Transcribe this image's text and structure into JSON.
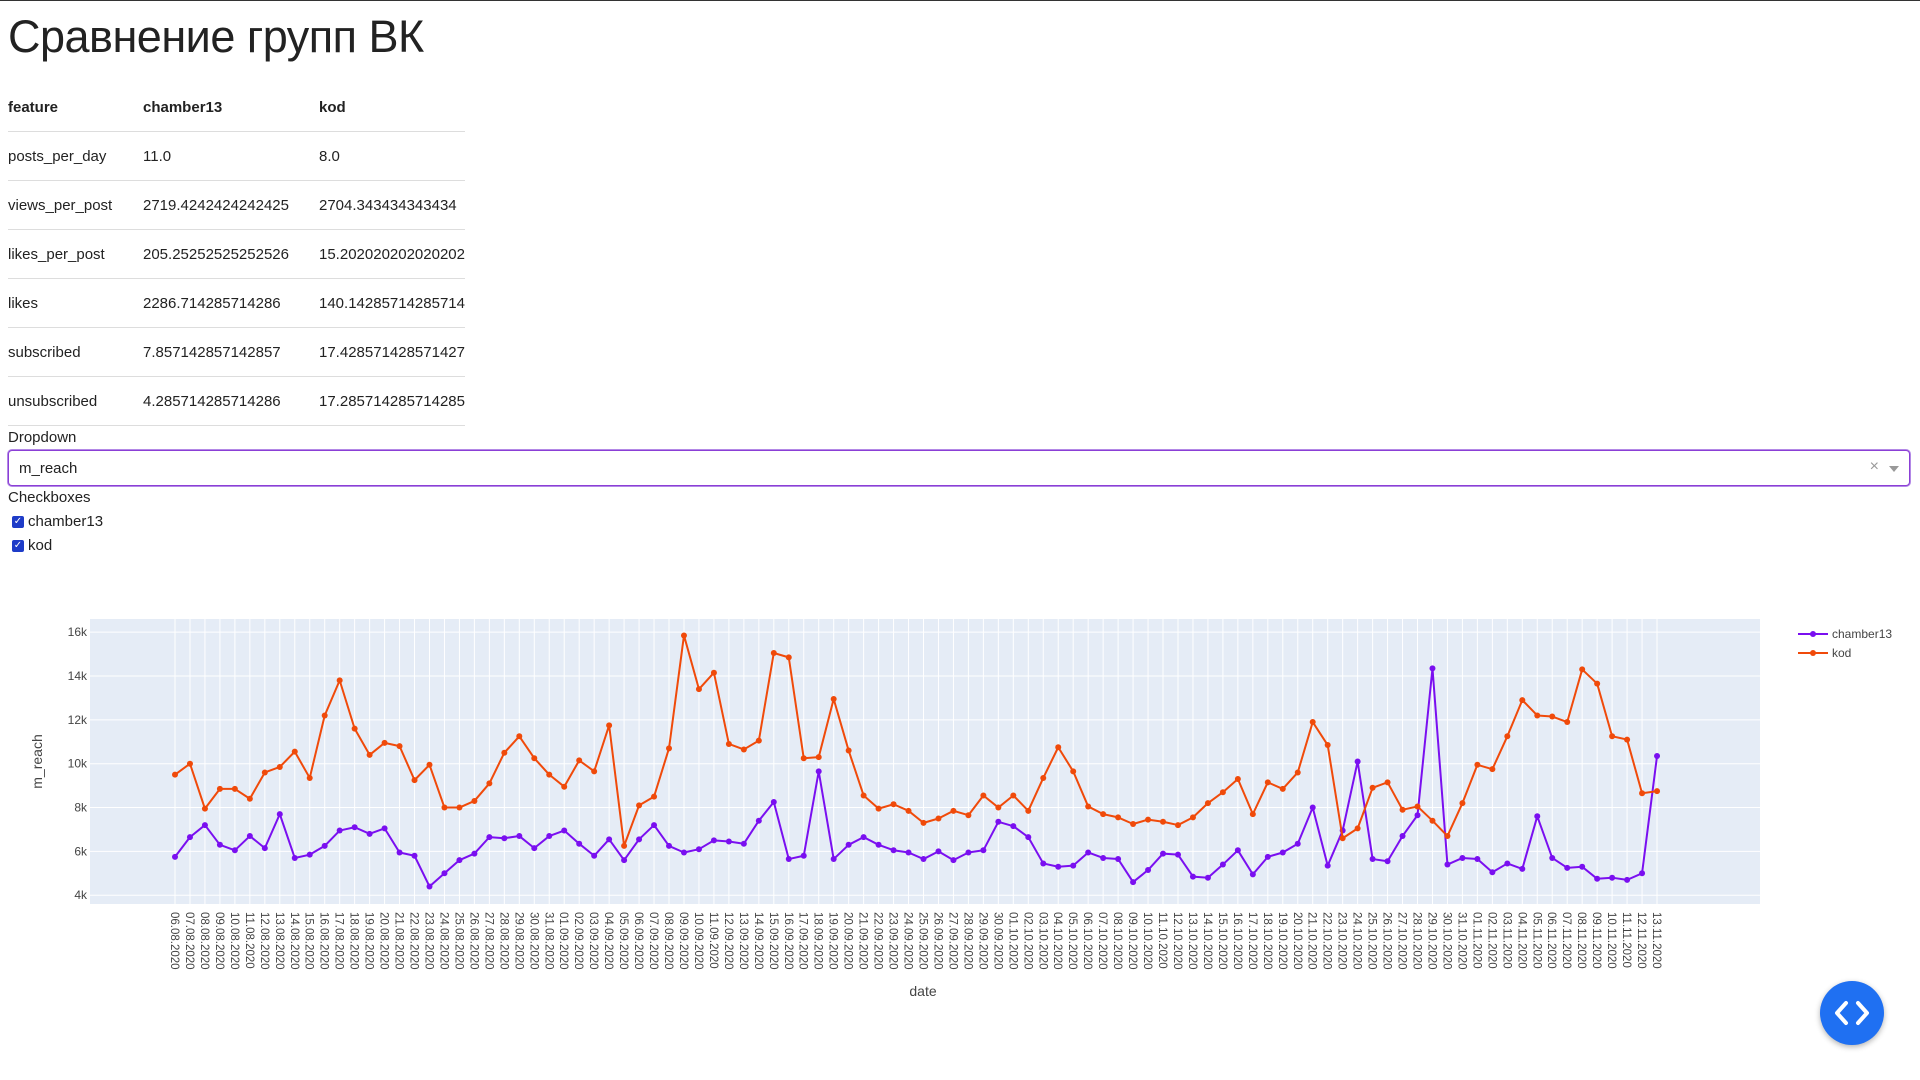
{
  "title": "Сравнение групп ВК",
  "table": {
    "headers": [
      "feature",
      "chamber13",
      "kod"
    ],
    "rows": [
      [
        "posts_per_day",
        "11.0",
        "8.0"
      ],
      [
        "views_per_post",
        "2719.4242424242425",
        "2704.343434343434"
      ],
      [
        "likes_per_post",
        "205.25252525252526",
        "15.202020202020202"
      ],
      [
        "likes",
        "2286.714285714286",
        "140.14285714285714"
      ],
      [
        "subscribed",
        "7.857142857142857",
        "17.428571428571427"
      ],
      [
        "unsubscribed",
        "4.285714285714286",
        "17.285714285714285"
      ]
    ]
  },
  "dropdown": {
    "label": "Dropdown",
    "value": "m_reach",
    "clear_symbol": "×"
  },
  "checkboxes": {
    "label": "Checkboxes",
    "items": [
      {
        "label": "chamber13",
        "checked": true
      },
      {
        "label": "kod",
        "checked": true
      }
    ]
  },
  "colors": {
    "chamber13": "#7a0ff0",
    "kod": "#f04a0a",
    "plot_bg": "#e5ecf6",
    "accent": "#1f70f2"
  },
  "icons": {
    "fab": "code-icon",
    "clear": "clear-icon",
    "arrow": "chevron-down-icon",
    "check": "checkmark-icon"
  },
  "chart_data": {
    "type": "line",
    "xlabel": "date",
    "ylabel": "m_reach",
    "ylim": [
      3600,
      16600
    ],
    "yticks": [
      4000,
      6000,
      8000,
      10000,
      12000,
      14000,
      16000
    ],
    "ytick_labels": [
      "4k",
      "6k",
      "8k",
      "10k",
      "12k",
      "14k",
      "16k"
    ],
    "legend": "top-right",
    "grid": true,
    "x": [
      "06.08.2020",
      "07.08.2020",
      "08.08.2020",
      "09.08.2020",
      "10.08.2020",
      "11.08.2020",
      "12.08.2020",
      "13.08.2020",
      "14.08.2020",
      "15.08.2020",
      "16.08.2020",
      "17.08.2020",
      "18.08.2020",
      "19.08.2020",
      "20.08.2020",
      "21.08.2020",
      "22.08.2020",
      "23.08.2020",
      "24.08.2020",
      "25.08.2020",
      "26.08.2020",
      "27.08.2020",
      "28.08.2020",
      "29.08.2020",
      "30.08.2020",
      "31.08.2020",
      "01.09.2020",
      "02.09.2020",
      "03.09.2020",
      "04.09.2020",
      "05.09.2020",
      "06.09.2020",
      "07.09.2020",
      "08.09.2020",
      "09.09.2020",
      "10.09.2020",
      "11.09.2020",
      "12.09.2020",
      "13.09.2020",
      "14.09.2020",
      "15.09.2020",
      "16.09.2020",
      "17.09.2020",
      "18.09.2020",
      "19.09.2020",
      "20.09.2020",
      "21.09.2020",
      "22.09.2020",
      "23.09.2020",
      "24.09.2020",
      "25.09.2020",
      "26.09.2020",
      "27.09.2020",
      "28.09.2020",
      "29.09.2020",
      "30.09.2020",
      "01.10.2020",
      "02.10.2020",
      "03.10.2020",
      "04.10.2020",
      "05.10.2020",
      "06.10.2020",
      "07.10.2020",
      "08.10.2020",
      "09.10.2020",
      "10.10.2020",
      "11.10.2020",
      "12.10.2020",
      "13.10.2020",
      "14.10.2020",
      "15.10.2020",
      "16.10.2020",
      "17.10.2020",
      "18.10.2020",
      "19.10.2020",
      "20.10.2020",
      "21.10.2020",
      "22.10.2020",
      "23.10.2020",
      "24.10.2020",
      "25.10.2020",
      "26.10.2020",
      "27.10.2020",
      "28.10.2020",
      "29.10.2020",
      "30.10.2020",
      "31.10.2020",
      "01.11.2020",
      "02.11.2020",
      "03.11.2020",
      "04.11.2020",
      "05.11.2020",
      "06.11.2020",
      "07.11.2020",
      "08.11.2020",
      "09.11.2020",
      "10.11.2020",
      "11.11.2020",
      "12.11.2020",
      "13.11.2020"
    ],
    "series": [
      {
        "name": "chamber13",
        "values": [
          5750,
          6650,
          7200,
          6300,
          6050,
          6700,
          6150,
          7700,
          5700,
          5850,
          6250,
          6950,
          7100,
          6800,
          7050,
          5950,
          5800,
          4400,
          5000,
          5600,
          5900,
          6650,
          6600,
          6700,
          6150,
          6700,
          6950,
          6350,
          5800,
          6550,
          5600,
          6550,
          7200,
          6250,
          5950,
          6100,
          6500,
          6450,
          6350,
          7400,
          8250,
          5650,
          5800,
          9650,
          5650,
          6300,
          6650,
          6300,
          6050,
          5950,
          5650,
          6000,
          5600,
          5950,
          6050,
          7350,
          7150,
          6650,
          5450,
          5300,
          5350,
          5950,
          5700,
          5650,
          4600,
          5150,
          5900,
          5850,
          4850,
          4800,
          5400,
          6050,
          4950,
          5750,
          5950,
          6350,
          8000,
          5350,
          6950,
          10100,
          5650,
          5550,
          6700,
          7650,
          14350,
          5400,
          5700,
          5650,
          5050,
          5450,
          5200,
          7600,
          5700,
          5250,
          5300,
          4750,
          4800,
          4700,
          5000,
          10350
        ]
      },
      {
        "name": "kod",
        "values": [
          9500,
          10000,
          7950,
          8850,
          8850,
          8400,
          9600,
          9850,
          10550,
          9350,
          12200,
          13800,
          11600,
          10400,
          10950,
          10800,
          9250,
          9950,
          8000,
          8000,
          8300,
          9100,
          10500,
          11250,
          10250,
          9500,
          8950,
          10150,
          9650,
          11750,
          6250,
          8100,
          8500,
          10700,
          15850,
          13400,
          14150,
          10900,
          10650,
          11050,
          15050,
          14850,
          10250,
          10300,
          12950,
          10600,
          8550,
          7950,
          8150,
          7850,
          7300,
          7500,
          7850,
          7650,
          8550,
          8000,
          8550,
          7850,
          9350,
          10750,
          9650,
          8050,
          7700,
          7550,
          7250,
          7450,
          7350,
          7200,
          7550,
          8200,
          8700,
          9300,
          7700,
          9150,
          8850,
          9600,
          11900,
          10850,
          6600,
          7050,
          8900,
          9150,
          7900,
          8050,
          7400,
          6700,
          8200,
          9950,
          9750,
          11250,
          12900,
          12200,
          12150,
          11900,
          14300,
          13650,
          11250,
          11100,
          8650,
          8750
        ]
      }
    ]
  }
}
